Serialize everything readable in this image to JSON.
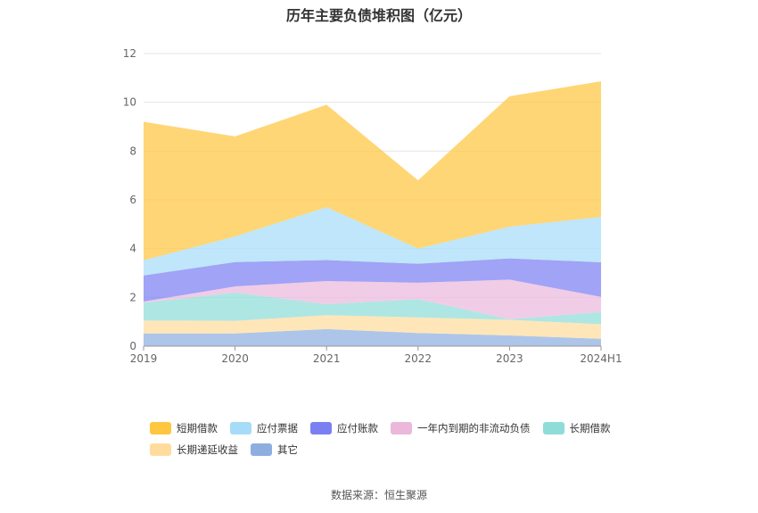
{
  "page": {
    "title": "历年主要负债堆积图（亿元）",
    "source": "数据来源：恒生聚源"
  },
  "chart_data": {
    "type": "area",
    "stacked": true,
    "title": "历年主要负债堆积图（亿元）",
    "categories": [
      "2019",
      "2020",
      "2021",
      "2022",
      "2023",
      "2024H1"
    ],
    "ylim": [
      0,
      12
    ],
    "yticks": [
      0,
      2,
      4,
      6,
      8,
      10,
      12
    ],
    "grid": true,
    "legend_position": "bottom",
    "series": [
      {
        "name": "其它",
        "values": [
          0.52,
          0.52,
          0.7,
          0.54,
          0.44,
          0.3
        ],
        "color": "#8eaee0"
      },
      {
        "name": "长期递延收益",
        "values": [
          0.53,
          0.52,
          0.57,
          0.64,
          0.64,
          0.6
        ],
        "color": "#ffdc9e"
      },
      {
        "name": "长期借款",
        "values": [
          0.73,
          1.16,
          0.45,
          0.75,
          0.02,
          0.5
        ],
        "color": "#8fdcd8"
      },
      {
        "name": "一年内到期的非流动负债",
        "values": [
          0.05,
          0.25,
          0.95,
          0.67,
          1.63,
          0.62
        ],
        "color": "#ebb8dc"
      },
      {
        "name": "应付账款",
        "values": [
          1.07,
          1.0,
          0.86,
          0.78,
          0.87,
          1.42
        ],
        "color": "#7b7ff2"
      },
      {
        "name": "应付票据",
        "values": [
          0.62,
          1.05,
          2.17,
          0.62,
          1.3,
          1.86
        ],
        "color": "#a6dcf8"
      },
      {
        "name": "短期借款",
        "values": [
          5.68,
          4.1,
          4.2,
          2.8,
          5.35,
          5.56
        ],
        "color": "#ffc640"
      }
    ]
  }
}
